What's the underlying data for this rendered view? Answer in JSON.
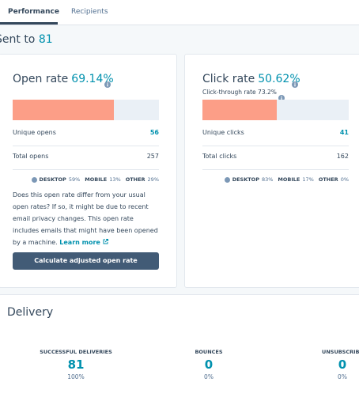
{
  "tabs": [
    "Performance",
    "Recipients"
  ],
  "sent_to": {
    "label": "Sent to",
    "count": "81"
  },
  "open_rate": {
    "title": "Open rate",
    "rate": {
      "value": 69.14,
      "label": "69.14%"
    },
    "rows": [
      {
        "label": "Unique opens",
        "value": "56"
      },
      {
        "label": "Total opens",
        "value": "257"
      }
    ],
    "devices": [
      {
        "label": "DESKTOP",
        "value": "59%"
      },
      {
        "label": "MOBILE",
        "value": "13%"
      },
      {
        "label": "OTHER",
        "value": "29%"
      }
    ],
    "note": "Does this open rate differ from your usual open rates? If so, it might be due to recent email privacy changes. This open rate includes emails that might have been opened by a machine.",
    "link": "Learn more",
    "button": "Calculate adjusted open rate"
  },
  "click_rate": {
    "title": "Click rate",
    "rate": {
      "value": 50.62,
      "label": "50.62%"
    },
    "subtitle": "Click-through rate 73.2%",
    "rows": [
      {
        "label": "Unique clicks",
        "value": "41"
      },
      {
        "label": "Total clicks",
        "value": "162"
      }
    ],
    "devices": [
      {
        "label": "DESKTOP",
        "value": "83%"
      },
      {
        "label": "MOBILE",
        "value": "17%"
      },
      {
        "label": "OTHER",
        "value": "0%"
      }
    ]
  },
  "delivery": {
    "title": "Delivery",
    "stats": [
      {
        "label": "SUCCESSFUL DELIVERIES",
        "value": "81",
        "percent": "100%"
      },
      {
        "label": "BOUNCES",
        "value": "0",
        "percent": "0%"
      },
      {
        "label": "UNSUBSCRIBE",
        "value": "0",
        "percent": "0%"
      }
    ]
  }
}
